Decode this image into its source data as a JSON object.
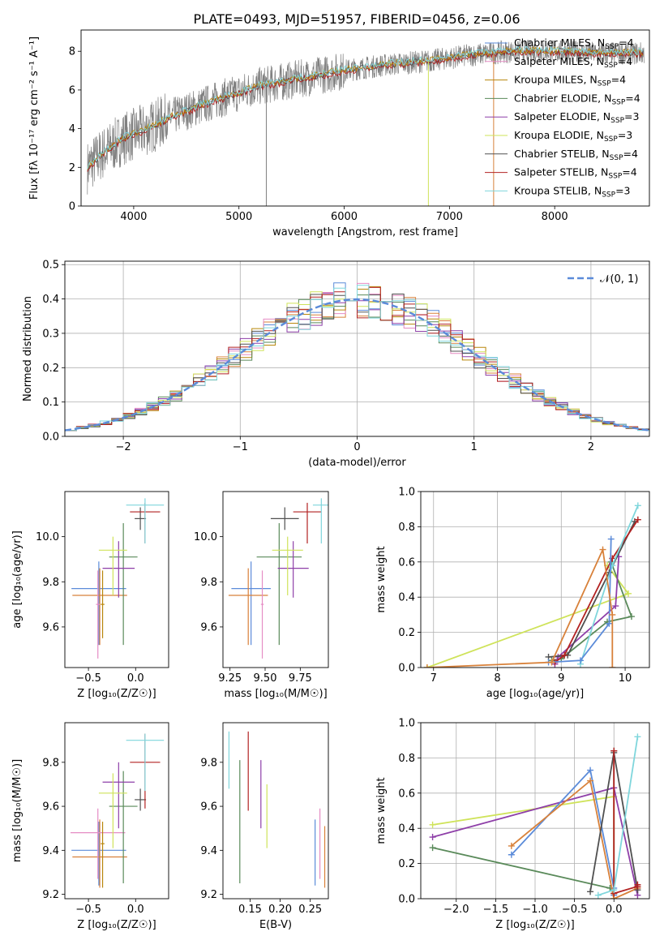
{
  "figure_title": "PLATE=0493, MJD=51957, FIBERID=0456, z=0.06",
  "colors": {
    "grey": "#808080",
    "blue": "#5b8bd9",
    "orange": "#d8813a",
    "pink": "#e58cc4",
    "brown": "#b8860b",
    "green": "#5a8a5a",
    "purple": "#8e3fa8",
    "yellow": "#cfe35a",
    "darkgrey": "#505050",
    "red": "#b22222",
    "cyan": "#7fd6dc"
  },
  "chart_data": [
    {
      "type": "line",
      "panel": "spectrum",
      "title": "",
      "xlabel": "wavelength [Angstrom, rest frame]",
      "ylabel": "Flux [fλ 10⁻¹⁷ erg cm⁻² s⁻¹ A⁻¹]",
      "xlim": [
        3500,
        8900
      ],
      "ylim": [
        0,
        9.1
      ],
      "xticks": [
        4000,
        5000,
        6000,
        7000,
        8000
      ],
      "yticks": [
        0,
        2,
        4,
        6,
        8
      ],
      "data_color": "grey",
      "continuum_x": [
        3560,
        3700,
        3900,
        4100,
        4400,
        4800,
        5200,
        5600,
        6000,
        6400,
        6800,
        7200,
        7600,
        8000,
        8400,
        8850
      ],
      "continuum_y": [
        2.0,
        2.7,
        3.5,
        3.9,
        4.7,
        5.5,
        6.2,
        6.6,
        7.0,
        7.3,
        7.5,
        7.8,
        8.0,
        8.0,
        7.9,
        7.9
      ],
      "legend": [
        {
          "label": "Chabrier MILES, N",
          "sub": "SSP",
          "tail": "=4",
          "color": "blue"
        },
        {
          "label": "Salpeter MILES, N",
          "sub": "SSP",
          "tail": "=4",
          "color": "pink"
        },
        {
          "label": "Kroupa MILES, N",
          "sub": "SSP",
          "tail": "=4",
          "color": "brown"
        },
        {
          "label": "Chabrier ELODIE, N",
          "sub": "SSP",
          "tail": "=4",
          "color": "green"
        },
        {
          "label": "Salpeter ELODIE, N",
          "sub": "SSP",
          "tail": "=3",
          "color": "purple"
        },
        {
          "label": "Kroupa ELODIE, N",
          "sub": "SSP",
          "tail": "=3",
          "color": "yellow"
        },
        {
          "label": "Chabrier STELIB, N",
          "sub": "SSP",
          "tail": "=4",
          "color": "darkgrey"
        },
        {
          "label": "Salpeter STELIB, N",
          "sub": "SSP",
          "tail": "=4",
          "color": "red"
        },
        {
          "label": "Kroupa STELIB, N",
          "sub": "SSP",
          "tail": "=3",
          "color": "cyan"
        }
      ]
    },
    {
      "type": "line",
      "panel": "residuals",
      "xlabel": "(data-model)/error",
      "ylabel": "Normed distribution",
      "xlim": [
        -2.5,
        2.5
      ],
      "ylim": [
        0,
        0.51
      ],
      "xticks": [
        -2,
        -1,
        0,
        1,
        2
      ],
      "yticks": [
        0.0,
        0.1,
        0.2,
        0.3,
        0.4,
        0.5
      ],
      "legend_label": "𝒩(0, 1)",
      "gauss_color": "blue",
      "hist_bin_width": 0.1
    },
    {
      "type": "scatter",
      "panel": "age_vs_Z",
      "xlabel": "Z [log₁₀(Z/Z☉)]",
      "ylabel": "age  [log₁₀(age/yr)]",
      "xlim": [
        -0.75,
        0.35
      ],
      "ylim": [
        9.42,
        10.2
      ],
      "xticks": [
        -0.5,
        0.0
      ],
      "yticks": [
        9.6,
        9.8,
        10.0
      ],
      "points": [
        {
          "color": "blue",
          "x": -0.39,
          "xerr": 0.29,
          "y": 9.77,
          "yerr": [
            0.25,
            0.12
          ]
        },
        {
          "color": "orange",
          "x": -0.38,
          "xerr": 0.29,
          "y": 9.74,
          "yerr": [
            0.22,
            0.12
          ]
        },
        {
          "color": "pink",
          "x": -0.4,
          "xerr": 0.02,
          "y": 9.7,
          "yerr": [
            0.24,
            0.15
          ]
        },
        {
          "color": "brown",
          "x": -0.35,
          "xerr": 0.02,
          "y": 9.7,
          "yerr": [
            0.15,
            0.15
          ]
        },
        {
          "color": "green",
          "x": -0.13,
          "xerr": 0.15,
          "y": 9.91,
          "yerr": [
            0.39,
            0.15
          ]
        },
        {
          "color": "purple",
          "x": -0.18,
          "xerr": 0.17,
          "y": 9.86,
          "yerr": [
            0.13,
            0.12
          ]
        },
        {
          "color": "yellow",
          "x": -0.24,
          "xerr": 0.15,
          "y": 9.94,
          "yerr": [
            0.2,
            0.06
          ]
        },
        {
          "color": "darkgrey",
          "x": 0.05,
          "xerr": 0.06,
          "y": 10.08,
          "yerr": [
            0.05,
            0.05
          ]
        },
        {
          "color": "red",
          "x": 0.1,
          "xerr": 0.16,
          "y": 10.11,
          "yerr": [
            0.14,
            0.04
          ]
        },
        {
          "color": "cyan",
          "x": 0.1,
          "xerr": 0.2,
          "y": 10.14,
          "yerr": [
            0.17,
            0.03
          ]
        }
      ]
    },
    {
      "type": "scatter",
      "panel": "age_vs_mass",
      "xlabel": "mass [log₁₀(M/M☉)]",
      "ylabel": "",
      "xlim": [
        9.2,
        9.95
      ],
      "ylim": [
        9.42,
        10.2
      ],
      "xticks": [
        9.25,
        9.5,
        9.75
      ],
      "yticks": [
        9.6,
        9.8,
        10.0
      ],
      "points": [
        {
          "color": "blue",
          "x": 9.4,
          "xerr": 0.14,
          "y": 9.77,
          "yerr": [
            0.25,
            0.12
          ]
        },
        {
          "color": "orange",
          "x": 9.38,
          "xerr": 0.14,
          "y": 9.74,
          "yerr": [
            0.22,
            0.12
          ]
        },
        {
          "color": "pink",
          "x": 9.48,
          "xerr": 0.01,
          "y": 9.7,
          "yerr": [
            0.24,
            0.15
          ]
        },
        {
          "color": "green",
          "x": 9.6,
          "xerr": 0.16,
          "y": 9.91,
          "yerr": [
            0.39,
            0.15
          ]
        },
        {
          "color": "purple",
          "x": 9.7,
          "xerr": 0.11,
          "y": 9.86,
          "yerr": [
            0.13,
            0.12
          ]
        },
        {
          "color": "yellow",
          "x": 9.66,
          "xerr": 0.11,
          "y": 9.94,
          "yerr": [
            0.2,
            0.06
          ]
        },
        {
          "color": "darkgrey",
          "x": 9.64,
          "xerr": 0.1,
          "y": 10.08,
          "yerr": [
            0.05,
            0.05
          ]
        },
        {
          "color": "red",
          "x": 9.8,
          "xerr": 0.1,
          "y": 10.11,
          "yerr": [
            0.14,
            0.04
          ]
        },
        {
          "color": "cyan",
          "x": 9.9,
          "xerr": 0.06,
          "y": 10.14,
          "yerr": [
            0.17,
            0.03
          ]
        }
      ]
    },
    {
      "type": "line",
      "panel": "weight_vs_age",
      "xlabel": "age  [log₁₀(age/yr)]",
      "ylabel": "mass weight",
      "xlim": [
        6.8,
        10.38
      ],
      "ylim": [
        0,
        1.0
      ],
      "xticks": [
        7,
        8,
        9,
        10
      ],
      "yticks": [
        0.0,
        0.2,
        0.4,
        0.6,
        0.8,
        1.0
      ],
      "series": [
        {
          "color": "yellow",
          "x": [
            6.9,
            10.05,
            9.72
          ],
          "y": [
            0.0,
            0.42,
            0.58
          ]
        },
        {
          "color": "green",
          "x": [
            8.85,
            9.0,
            9.72,
            10.1,
            9.78
          ],
          "y": [
            0.04,
            0.05,
            0.26,
            0.29,
            0.6
          ]
        },
        {
          "color": "purple",
          "x": [
            8.9,
            8.95,
            9.85,
            9.9
          ],
          "y": [
            0.02,
            0.06,
            0.35,
            0.63
          ]
        },
        {
          "color": "darkgrey",
          "x": [
            8.8,
            9.1,
            9.75,
            10.15
          ],
          "y": [
            0.06,
            0.07,
            0.54,
            0.83
          ]
        },
        {
          "color": "red",
          "x": [
            8.9,
            9.05,
            9.8,
            10.2
          ],
          "y": [
            0.03,
            0.07,
            0.62,
            0.84
          ]
        },
        {
          "color": "cyan",
          "x": [
            9.3,
            9.8,
            10.2
          ],
          "y": [
            0.02,
            0.58,
            0.92
          ]
        },
        {
          "color": "blue",
          "x": [
            8.8,
            9.3,
            9.75,
            9.78
          ],
          "y": [
            0.03,
            0.04,
            0.25,
            0.73
          ]
        },
        {
          "color": "orange",
          "x": [
            6.9,
            8.85,
            9.65,
            9.8,
            9.8
          ],
          "y": [
            0.0,
            0.03,
            0.67,
            0.3,
            0.0
          ]
        }
      ]
    },
    {
      "type": "scatter",
      "panel": "mass_vs_Z",
      "xlabel": "Z [log₁₀(Z/Z☉)]",
      "ylabel": "mass [log₁₀(M/M☉)]",
      "xlim": [
        -0.75,
        0.35
      ],
      "ylim": [
        9.18,
        9.98
      ],
      "xticks": [
        -0.5,
        0.0
      ],
      "yticks": [
        9.2,
        9.4,
        9.6,
        9.8
      ],
      "points": [
        {
          "color": "blue",
          "x": -0.39,
          "xerr": 0.29,
          "y": 9.4,
          "yerr": [
            0.16,
            0.13
          ]
        },
        {
          "color": "orange",
          "x": -0.38,
          "xerr": 0.29,
          "y": 9.37,
          "yerr": [
            0.14,
            0.17
          ]
        },
        {
          "color": "pink",
          "x": -0.4,
          "xerr": 0.29,
          "y": 9.48,
          "yerr": [
            0.21,
            0.11
          ]
        },
        {
          "color": "brown",
          "x": -0.35,
          "xerr": 0.02,
          "y": 9.43,
          "yerr": [
            0.2,
            0.1
          ]
        },
        {
          "color": "green",
          "x": -0.13,
          "xerr": 0.15,
          "y": 9.6,
          "yerr": [
            0.35,
            0.16
          ]
        },
        {
          "color": "purple",
          "x": -0.18,
          "xerr": 0.17,
          "y": 9.71,
          "yerr": [
            0.21,
            0.09
          ]
        },
        {
          "color": "yellow",
          "x": -0.24,
          "xerr": 0.15,
          "y": 9.66,
          "yerr": [
            0.25,
            0.09
          ]
        },
        {
          "color": "darkgrey",
          "x": 0.05,
          "xerr": 0.06,
          "y": 9.63,
          "yerr": [
            0.05,
            0.05
          ]
        },
        {
          "color": "red",
          "x": 0.1,
          "xerr": 0.16,
          "y": 9.8,
          "yerr": [
            0.21,
            0.13
          ]
        },
        {
          "color": "cyan",
          "x": 0.1,
          "xerr": 0.2,
          "y": 9.9,
          "yerr": [
            0.23,
            0.03
          ]
        }
      ]
    },
    {
      "type": "scatter",
      "panel": "mass_vs_EBV",
      "xlabel": "E(B-V)",
      "ylabel": "",
      "xlim": [
        0.105,
        0.28
      ],
      "ylim": [
        9.18,
        9.98
      ],
      "xticks": [
        0.15,
        0.2,
        0.25
      ],
      "yticks": [
        9.2,
        9.4,
        9.6,
        9.8
      ],
      "bars": [
        {
          "color": "cyan",
          "x": 0.115,
          "y0": 9.68,
          "y1": 9.94
        },
        {
          "color": "green",
          "x": 0.133,
          "y0": 9.25,
          "y1": 9.81
        },
        {
          "color": "red",
          "x": 0.147,
          "y0": 9.58,
          "y1": 9.94
        },
        {
          "color": "purple",
          "x": 0.168,
          "y0": 9.5,
          "y1": 9.81
        },
        {
          "color": "yellow",
          "x": 0.178,
          "y0": 9.41,
          "y1": 9.7
        },
        {
          "color": "blue",
          "x": 0.258,
          "y0": 9.24,
          "y1": 9.54
        },
        {
          "color": "pink",
          "x": 0.266,
          "y0": 9.27,
          "y1": 9.59
        },
        {
          "color": "orange",
          "x": 0.274,
          "y0": 9.23,
          "y1": 9.51
        }
      ]
    },
    {
      "type": "line",
      "panel": "weight_vs_Z",
      "xlabel": "Z [log₁₀(Z/Z☉)]",
      "ylabel": "mass weight",
      "xlim": [
        -2.45,
        0.45
      ],
      "ylim": [
        0,
        1.0
      ],
      "xticks": [
        -2.0,
        -1.5,
        -1.0,
        -0.5,
        0.0
      ],
      "yticks": [
        0.0,
        0.2,
        0.4,
        0.6,
        0.8,
        1.0
      ],
      "series": [
        {
          "color": "green",
          "x": [
            -2.3,
            -0.05,
            0.0,
            0.0
          ],
          "y": [
            0.29,
            0.06,
            0.03,
            0.84
          ]
        },
        {
          "color": "yellow",
          "x": [
            -2.3,
            0.0,
            0.0
          ],
          "y": [
            0.42,
            0.58,
            0.0
          ]
        },
        {
          "color": "purple",
          "x": [
            -2.3,
            0.0,
            0.3,
            0.3
          ],
          "y": [
            0.35,
            0.63,
            0.02,
            0.06
          ]
        },
        {
          "color": "blue",
          "x": [
            -1.3,
            -0.3,
            0.0,
            0.0
          ],
          "y": [
            0.25,
            0.73,
            0.06,
            0.02
          ]
        },
        {
          "color": "orange",
          "x": [
            -1.3,
            -0.3,
            0.0,
            0.3
          ],
          "y": [
            0.3,
            0.67,
            0.0,
            0.06
          ]
        },
        {
          "color": "darkgrey",
          "x": [
            -0.3,
            0.0,
            0.3
          ],
          "y": [
            0.04,
            0.83,
            0.05
          ]
        },
        {
          "color": "red",
          "x": [
            0.0,
            0.0,
            0.3,
            0.3
          ],
          "y": [
            0.84,
            0.03,
            0.07,
            0.08
          ]
        },
        {
          "color": "cyan",
          "x": [
            -0.2,
            0.0,
            0.3
          ],
          "y": [
            0.02,
            0.05,
            0.92
          ]
        }
      ]
    }
  ]
}
